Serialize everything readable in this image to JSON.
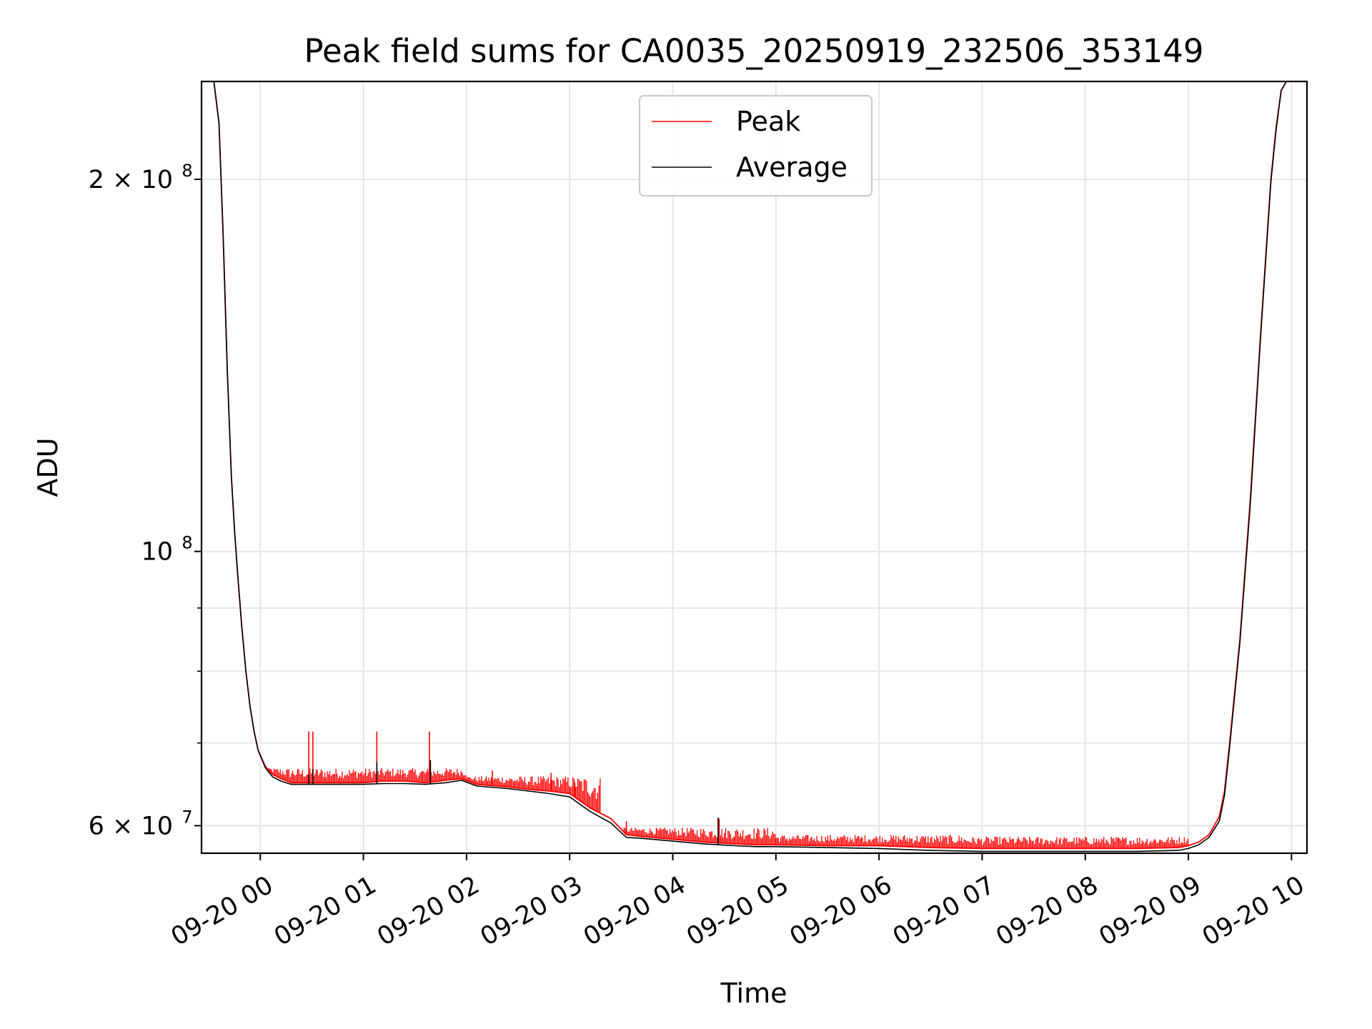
{
  "chart_data": {
    "type": "line",
    "title": "Peak field sums for CA0035_20250919_232506_353149",
    "xlabel": "Time",
    "ylabel": "ADU",
    "yscale": "log",
    "grid": true,
    "legend_position": "top-center",
    "xlim_hours": [
      -0.57,
      10.15
    ],
    "ylim": [
      57000000,
      240000000
    ],
    "x_ticks": [
      {
        "hour": 0,
        "label": "09-20 00"
      },
      {
        "hour": 1,
        "label": "09-20 01"
      },
      {
        "hour": 2,
        "label": "09-20 02"
      },
      {
        "hour": 3,
        "label": "09-20 03"
      },
      {
        "hour": 4,
        "label": "09-20 04"
      },
      {
        "hour": 5,
        "label": "09-20 05"
      },
      {
        "hour": 6,
        "label": "09-20 06"
      },
      {
        "hour": 7,
        "label": "09-20 07"
      },
      {
        "hour": 8,
        "label": "09-20 08"
      },
      {
        "hour": 9,
        "label": "09-20 09"
      },
      {
        "hour": 10,
        "label": "09-20 10"
      }
    ],
    "y_ticks": [
      {
        "value": 60000000,
        "label_base": "6 × 10",
        "label_exp": "7"
      },
      {
        "value": 100000000,
        "label_base": "10",
        "label_exp": "8"
      },
      {
        "value": 200000000,
        "label_base": "2 × 10",
        "label_exp": "8"
      }
    ],
    "y_minor_ticks": [
      70000000,
      80000000,
      90000000
    ],
    "series": [
      {
        "name": "Peak",
        "color": "#ff0000",
        "x_hours": [
          -0.57,
          -0.45,
          -0.4,
          -0.36,
          -0.32,
          -0.28,
          -0.25,
          -0.22,
          -0.18,
          -0.14,
          -0.1,
          -0.06,
          -0.02,
          0.05,
          0.12,
          0.2,
          0.3,
          0.4,
          0.5,
          0.7,
          0.9,
          1.0,
          1.2,
          1.4,
          1.6,
          1.8,
          1.95,
          2.1,
          2.4,
          2.6,
          2.8,
          3.0,
          3.2,
          3.4,
          3.55,
          3.7,
          4.0,
          4.3,
          4.6,
          4.8,
          5.0,
          5.5,
          6.0,
          6.5,
          7.0,
          7.5,
          8.0,
          8.5,
          8.9,
          9.0,
          9.1,
          9.2,
          9.3,
          9.35,
          9.4,
          9.5,
          9.6,
          9.7,
          9.8,
          9.85,
          9.9,
          9.95
        ],
        "values": [
          240000000,
          240000000,
          222000000,
          180000000,
          140000000,
          115000000,
          104000000,
          96000000,
          87000000,
          80000000,
          75000000,
          71500000,
          69000000,
          67000000,
          66000000,
          65500000,
          65000000,
          65000000,
          65000000,
          65000000,
          65000000,
          65000000,
          65200000,
          65200000,
          65000000,
          65300000,
          65500000,
          64800000,
          64500000,
          64200000,
          64000000,
          63700000,
          62000000,
          60800000,
          59000000,
          58800000,
          58500000,
          58200000,
          58000000,
          57900000,
          57900000,
          57800000,
          57800000,
          57600000,
          57500000,
          57500000,
          57500000,
          57500000,
          57600000,
          57800000,
          58200000,
          59000000,
          61000000,
          64000000,
          70000000,
          85000000,
          110000000,
          150000000,
          200000000,
          220000000,
          236000000,
          240000000
        ],
        "spikes": [
          {
            "hour": 0.47,
            "value": 71500000
          },
          {
            "hour": 0.51,
            "value": 71500000
          },
          {
            "hour": 1.13,
            "value": 71500000
          },
          {
            "hour": 1.64,
            "value": 71500000
          },
          {
            "hour": 2.25,
            "value": 66500000
          },
          {
            "hour": 2.82,
            "value": 66200000
          },
          {
            "hour": 3.05,
            "value": 65000000
          },
          {
            "hour": 3.55,
            "value": 60500000
          },
          {
            "hour": 4.45,
            "value": 60800000
          }
        ],
        "noise_band_values": [
          {
            "from_hour": 0.05,
            "to_hour": 2.0,
            "max_value": 66800000
          },
          {
            "from_hour": 2.0,
            "to_hour": 3.3,
            "max_value": 65800000
          },
          {
            "from_hour": 3.3,
            "to_hour": 5.0,
            "max_value": 59800000
          },
          {
            "from_hour": 5.0,
            "to_hour": 6.8,
            "max_value": 59000000
          },
          {
            "from_hour": 6.8,
            "to_hour": 9.0,
            "max_value": 58800000
          }
        ]
      },
      {
        "name": "Average",
        "color": "#000000",
        "x_hours": [
          -0.57,
          -0.45,
          -0.4,
          -0.36,
          -0.32,
          -0.28,
          -0.25,
          -0.22,
          -0.18,
          -0.14,
          -0.1,
          -0.06,
          -0.02,
          0.05,
          0.12,
          0.2,
          0.3,
          0.4,
          0.5,
          0.7,
          0.9,
          1.0,
          1.2,
          1.4,
          1.6,
          1.8,
          1.95,
          2.1,
          2.4,
          2.6,
          2.8,
          3.0,
          3.2,
          3.4,
          3.55,
          3.7,
          4.0,
          4.3,
          4.6,
          4.8,
          5.0,
          5.5,
          6.0,
          6.5,
          7.0,
          7.5,
          8.0,
          8.5,
          8.9,
          9.0,
          9.1,
          9.2,
          9.3,
          9.35,
          9.4,
          9.5,
          9.6,
          9.7,
          9.8,
          9.85,
          9.9,
          9.95
        ],
        "values": [
          240000000,
          240000000,
          222000000,
          180000000,
          140000000,
          115000000,
          104000000,
          96000000,
          87000000,
          80000000,
          75000000,
          71500000,
          69000000,
          66800000,
          65700000,
          65200000,
          64800000,
          64800000,
          64800000,
          64800000,
          64800000,
          64800000,
          64900000,
          64900000,
          64800000,
          65000000,
          65300000,
          64600000,
          64300000,
          64000000,
          63700000,
          63300000,
          61600000,
          60300000,
          58700000,
          58600000,
          58300000,
          58000000,
          57800000,
          57700000,
          57700000,
          57600000,
          57500000,
          57300000,
          57200000,
          57200000,
          57200000,
          57200000,
          57300000,
          57500000,
          57900000,
          58700000,
          60500000,
          63500000,
          69500000,
          84500000,
          109000000,
          149000000,
          199000000,
          219000000,
          236000000,
          240000000
        ],
        "spikes": [
          {
            "hour": 0.47,
            "value": 66000000
          },
          {
            "hour": 0.51,
            "value": 66700000
          },
          {
            "hour": 1.13,
            "value": 67500000
          },
          {
            "hour": 1.65,
            "value": 67800000
          },
          {
            "hour": 4.44,
            "value": 60900000
          }
        ]
      }
    ]
  }
}
